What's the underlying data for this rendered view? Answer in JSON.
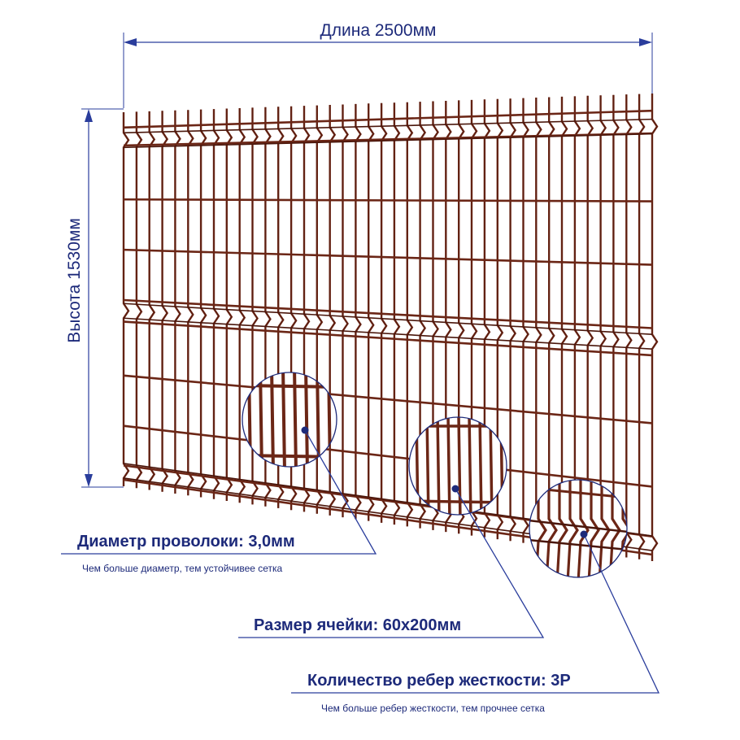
{
  "dimensions": {
    "length_label": "Длина 2500мм",
    "height_label": "Высота 1530мм"
  },
  "callouts": {
    "wire_diameter": {
      "title": "Диаметр проволоки: 3,0мм",
      "subtitle": "Чем больше диаметр, тем устойчивее сетка"
    },
    "cell_size": {
      "title": "Размер ячейки: 60х200мм"
    },
    "ribs": {
      "title": "Количество ребер жесткости: 3Р",
      "subtitle": "Чем больше ребер жесткости, тем прочнее сетка"
    }
  },
  "colors": {
    "wire": "#6b2616",
    "wire_dark": "#4a160b",
    "accent": "#1d2a7a",
    "leader": "#2a3d9c"
  },
  "panel": {
    "vertical_wire_count": 42,
    "stiffening_ribs": 3
  }
}
